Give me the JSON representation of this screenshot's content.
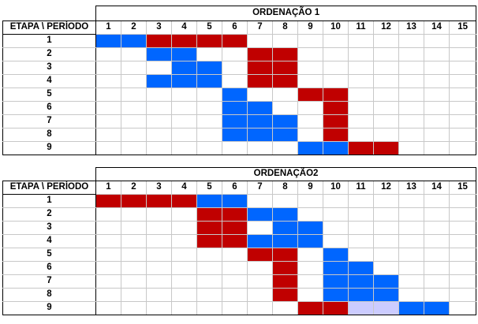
{
  "colors": {
    "r": "#c00000",
    "b": "#0066ff",
    "l": "#ccccff"
  },
  "header_label": "ETAPA \\ PERÍODO",
  "periods": [
    "1",
    "2",
    "3",
    "4",
    "5",
    "6",
    "7",
    "8",
    "9",
    "10",
    "11",
    "12",
    "13",
    "14",
    "15"
  ],
  "tables": [
    {
      "title": "ORDENAÇÃO 1",
      "rows": [
        {
          "label": "1",
          "cells": [
            "b",
            "b",
            "r",
            "r",
            "r",
            "r",
            "",
            "",
            "",
            "",
            "",
            "",
            "",
            "",
            ""
          ]
        },
        {
          "label": "2",
          "cells": [
            "",
            "",
            "b",
            "b",
            "",
            "",
            "r",
            "r",
            "",
            "",
            "",
            "",
            "",
            "",
            ""
          ]
        },
        {
          "label": "3",
          "cells": [
            "",
            "",
            "",
            "b",
            "b",
            "",
            "r",
            "r",
            "",
            "",
            "",
            "",
            "",
            "",
            ""
          ]
        },
        {
          "label": "4",
          "cells": [
            "",
            "",
            "b",
            "b",
            "b",
            "",
            "r",
            "r",
            "",
            "",
            "",
            "",
            "",
            "",
            ""
          ]
        },
        {
          "label": "5",
          "cells": [
            "",
            "",
            "",
            "",
            "",
            "b",
            "",
            "",
            "r",
            "r",
            "",
            "",
            "",
            "",
            ""
          ]
        },
        {
          "label": "6",
          "cells": [
            "",
            "",
            "",
            "",
            "",
            "b",
            "b",
            "",
            "",
            "r",
            "",
            "",
            "",
            "",
            ""
          ]
        },
        {
          "label": "7",
          "cells": [
            "",
            "",
            "",
            "",
            "",
            "b",
            "b",
            "b",
            "",
            "r",
            "",
            "",
            "",
            "",
            ""
          ]
        },
        {
          "label": "8",
          "cells": [
            "",
            "",
            "",
            "",
            "",
            "b",
            "b",
            "b",
            "",
            "r",
            "",
            "",
            "",
            "",
            ""
          ]
        },
        {
          "label": "9",
          "cells": [
            "",
            "",
            "",
            "",
            "",
            "",
            "",
            "",
            "b",
            "b",
            "r",
            "r",
            "",
            "",
            ""
          ]
        }
      ]
    },
    {
      "title": "ORDENAÇÃO2",
      "rows": [
        {
          "label": "1",
          "cells": [
            "r",
            "r",
            "r",
            "r",
            "b",
            "b",
            "",
            "",
            "",
            "",
            "",
            "",
            "",
            "",
            ""
          ]
        },
        {
          "label": "2",
          "cells": [
            "",
            "",
            "",
            "",
            "r",
            "r",
            "b",
            "b",
            "",
            "",
            "",
            "",
            "",
            "",
            ""
          ]
        },
        {
          "label": "3",
          "cells": [
            "",
            "",
            "",
            "",
            "r",
            "r",
            "",
            "b",
            "b",
            "",
            "",
            "",
            "",
            "",
            ""
          ]
        },
        {
          "label": "4",
          "cells": [
            "",
            "",
            "",
            "",
            "r",
            "r",
            "b",
            "b",
            "b",
            "",
            "",
            "",
            "",
            "",
            ""
          ]
        },
        {
          "label": "5",
          "cells": [
            "",
            "",
            "",
            "",
            "",
            "",
            "r",
            "r",
            "",
            "b",
            "",
            "",
            "",
            "",
            ""
          ]
        },
        {
          "label": "6",
          "cells": [
            "",
            "",
            "",
            "",
            "",
            "",
            "",
            "r",
            "",
            "b",
            "b",
            "",
            "",
            "",
            ""
          ]
        },
        {
          "label": "7",
          "cells": [
            "",
            "",
            "",
            "",
            "",
            "",
            "",
            "r",
            "",
            "b",
            "b",
            "b",
            "",
            "",
            ""
          ]
        },
        {
          "label": "8",
          "cells": [
            "",
            "",
            "",
            "",
            "",
            "",
            "",
            "r",
            "",
            "b",
            "b",
            "b",
            "",
            "",
            ""
          ]
        },
        {
          "label": "9",
          "cells": [
            "",
            "",
            "",
            "",
            "",
            "",
            "",
            "",
            "r",
            "r",
            "l",
            "l",
            "b",
            "b",
            ""
          ]
        }
      ]
    }
  ]
}
